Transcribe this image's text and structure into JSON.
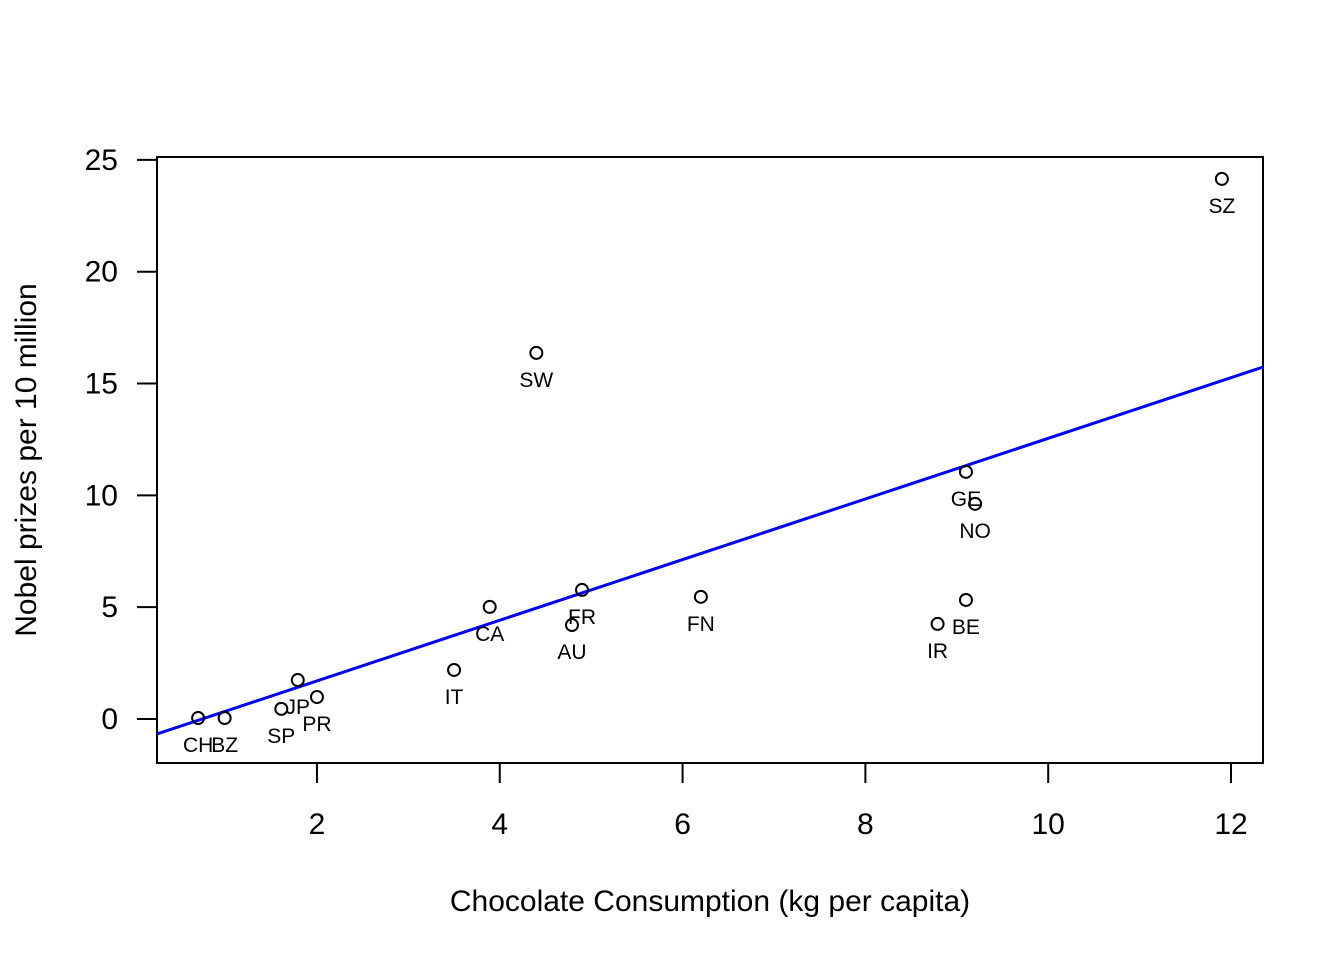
{
  "chart_data": {
    "type": "scatter",
    "title": "",
    "xlabel": "Chocolate Consumption (kg per capita)",
    "ylabel": "Nobel prizes per 10 million",
    "xlim": [
      0.25,
      12.35
    ],
    "ylim": [
      -1.97,
      25.13
    ],
    "xticks": [
      2,
      4,
      6,
      8,
      10,
      12
    ],
    "yticks": [
      0,
      5,
      10,
      15,
      20,
      25
    ],
    "grid": false,
    "points": [
      {
        "label": "CH",
        "x": 0.7,
        "y": 0.04
      },
      {
        "label": "BZ",
        "x": 0.99,
        "y": 0.04
      },
      {
        "label": "SP",
        "x": 1.61,
        "y": 0.45
      },
      {
        "label": "JP",
        "x": 1.79,
        "y": 1.74
      },
      {
        "label": "PR",
        "x": 2.0,
        "y": 0.98
      },
      {
        "label": "IT",
        "x": 3.5,
        "y": 2.19
      },
      {
        "label": "CA",
        "x": 3.89,
        "y": 5.01
      },
      {
        "label": "AU",
        "x": 4.79,
        "y": 4.2
      },
      {
        "label": "FR",
        "x": 4.9,
        "y": 5.77
      },
      {
        "label": "SW",
        "x": 4.4,
        "y": 16.37
      },
      {
        "label": "FN",
        "x": 6.2,
        "y": 5.46
      },
      {
        "label": "GE",
        "x": 9.1,
        "y": 11.05
      },
      {
        "label": "NO",
        "x": 9.2,
        "y": 9.62
      },
      {
        "label": "BE",
        "x": 9.1,
        "y": 5.32
      },
      {
        "label": "IR",
        "x": 8.79,
        "y": 4.25
      },
      {
        "label": "SZ",
        "x": 11.9,
        "y": 24.15
      }
    ],
    "fit_line": {
      "slope": 1.356,
      "intercept": -1.01,
      "color": "#0000ff"
    }
  }
}
